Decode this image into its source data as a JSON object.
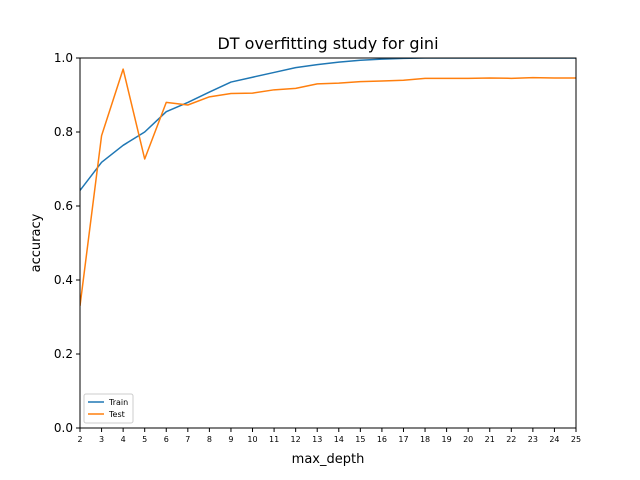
{
  "chart_data": {
    "type": "line",
    "title": "DT overfitting study for gini",
    "xlabel": "max_depth",
    "ylabel": "accuracy",
    "x": [
      2,
      3,
      4,
      5,
      6,
      7,
      8,
      9,
      10,
      11,
      12,
      13,
      14,
      15,
      16,
      17,
      18,
      19,
      20,
      21,
      22,
      23,
      24,
      25
    ],
    "xlim": [
      2,
      25
    ],
    "ylim": [
      0.0,
      1.0
    ],
    "yticks": [
      "0.0",
      "0.2",
      "0.4",
      "0.6",
      "0.8",
      "1.0"
    ],
    "xticks": [
      "2",
      "3",
      "4",
      "5",
      "6",
      "7",
      "8",
      "9",
      "10",
      "11",
      "12",
      "13",
      "14",
      "15",
      "16",
      "17",
      "18",
      "19",
      "20",
      "21",
      "22",
      "23",
      "24",
      "25"
    ],
    "legend_position": "lower-left",
    "grid": false,
    "series": [
      {
        "name": "Train",
        "color": "#1f77b4",
        "values": [
          0.642,
          0.718,
          0.764,
          0.8,
          0.855,
          0.88,
          0.908,
          0.935,
          0.948,
          0.961,
          0.974,
          0.982,
          0.989,
          0.994,
          0.997,
          0.999,
          1.0,
          1.0,
          1.0,
          1.0,
          1.0,
          1.0,
          1.0,
          1.0
        ]
      },
      {
        "name": "Test",
        "color": "#ff7f0e",
        "values": [
          0.33,
          0.79,
          0.97,
          0.727,
          0.88,
          0.873,
          0.895,
          0.904,
          0.905,
          0.914,
          0.918,
          0.93,
          0.932,
          0.936,
          0.938,
          0.94,
          0.945,
          0.945,
          0.945,
          0.946,
          0.945,
          0.947,
          0.946,
          0.946
        ]
      }
    ]
  }
}
